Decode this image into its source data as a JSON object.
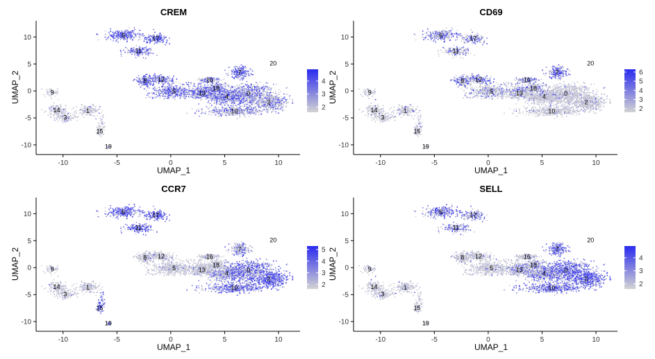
{
  "figure": {
    "x_label": "UMAP_1",
    "y_label": "UMAP_2",
    "x_ticks": [
      -10,
      -5,
      0,
      5,
      10
    ],
    "y_ticks": [
      10,
      5,
      0,
      -5,
      -10
    ],
    "xlim": [
      -12.5,
      12
    ],
    "ylim": [
      -11.8,
      13
    ],
    "low_color": "#d3d3d3",
    "high_color": "#2a2aef"
  },
  "chart_data": [
    {
      "type": "scatter",
      "title": "CREM",
      "xlabel": "UMAP_1",
      "ylabel": "UMAP_2",
      "legend": {
        "position": "right",
        "ticks": [
          2,
          3,
          4
        ],
        "range": [
          1.6,
          4.9
        ]
      },
      "expression_pattern": "high in clusters 6, 17, 11, 8, 12, 5, 13, 4 and 7; low in 9, 14, 3, 1"
    },
    {
      "type": "scatter",
      "title": "CD69",
      "xlabel": "UMAP_1",
      "ylabel": "UMAP_2",
      "legend": {
        "position": "right",
        "ticks": [
          2,
          3,
          4,
          5,
          6
        ],
        "range": [
          1.6,
          6.3
        ]
      },
      "expression_pattern": "moderate in clusters 6, 17, 8, 12, 7; low elsewhere"
    },
    {
      "type": "scatter",
      "title": "CCR7",
      "xlabel": "UMAP_1",
      "ylabel": "UMAP_2",
      "legend": {
        "position": "right",
        "ticks": [
          2,
          3,
          4,
          5
        ],
        "range": [
          1.6,
          5.3
        ]
      },
      "expression_pattern": "high in clusters 6, 17, 11, 0, 2, 10, 15, 19; low in 8, 12, 5, 9, 14, 3, 1"
    },
    {
      "type": "scatter",
      "title": "SELL",
      "xlabel": "UMAP_1",
      "ylabel": "UMAP_2",
      "legend": {
        "position": "right",
        "ticks": [
          2,
          3,
          4
        ],
        "range": [
          1.6,
          4.9
        ]
      },
      "expression_pattern": "high in clusters 0, 2, 10, 7, 6; low in 9, 14, 3, 1, 5"
    }
  ],
  "clusters": [
    {
      "label": "0",
      "x": 7.2,
      "y": -0.5
    },
    {
      "label": "1",
      "x": -7.7,
      "y": -3.7
    },
    {
      "label": "2",
      "x": 9.1,
      "y": -2.1
    },
    {
      "label": "3",
      "x": -9.8,
      "y": -4.9
    },
    {
      "label": "4",
      "x": 5.2,
      "y": -1.1
    },
    {
      "label": "5",
      "x": 0.3,
      "y": -0.1
    },
    {
      "label": "6",
      "x": -4.4,
      "y": 10.3
    },
    {
      "label": "7",
      "x": 6.4,
      "y": 3.4
    },
    {
      "label": "8",
      "x": -2.4,
      "y": 1.9
    },
    {
      "label": "9",
      "x": -11.0,
      "y": -0.3
    },
    {
      "label": "10",
      "x": 5.9,
      "y": -3.8
    },
    {
      "label": "11",
      "x": -3.0,
      "y": 7.4
    },
    {
      "label": "12",
      "x": -0.9,
      "y": 2.1
    },
    {
      "label": "13",
      "x": 2.9,
      "y": -0.4
    },
    {
      "label": "15",
      "x": -6.6,
      "y": -7.5
    },
    {
      "label": "14",
      "x": -10.6,
      "y": -3.6
    },
    {
      "label": "16",
      "x": 3.6,
      "y": 2.0
    },
    {
      "label": "17",
      "x": -1.4,
      "y": 9.7
    },
    {
      "label": "18",
      "x": 4.2,
      "y": 0.5
    },
    {
      "label": "19",
      "x": -5.8,
      "y": -10.3
    },
    {
      "label": "20",
      "x": 9.5,
      "y": 5.1
    }
  ]
}
